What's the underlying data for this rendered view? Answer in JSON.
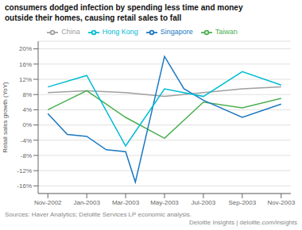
{
  "chart_data": {
    "type": "line",
    "title": "consumers dodged infection by spending less time and money",
    "subtitle": "outside their homes, causing retail sales to fall",
    "y_label": "Retail sales growth (YoY)",
    "annotations": [
      "Sources: Haver Analytics; Deloitte Services LP economic analysis.",
      "Deloitte Insights | deloitte.com/insights"
    ],
    "xlim": [
      -0.5,
      12.5
    ],
    "xticks": [
      {
        "value": 0,
        "label": "Nov-2002"
      },
      {
        "value": 2,
        "label": "Jan-2003"
      },
      {
        "value": 4,
        "label": "Mar-2003"
      },
      {
        "value": 6,
        "label": "May-2003"
      },
      {
        "value": 8,
        "label": "Jul-2003"
      },
      {
        "value": 10,
        "label": "Sep-2003"
      },
      {
        "value": 12,
        "label": "Nov-2003"
      }
    ],
    "ylim": [
      -18,
      22
    ],
    "yticks": [
      {
        "value": -16,
        "label": "-16%"
      },
      {
        "value": -12,
        "label": "-12%"
      },
      {
        "value": -8,
        "label": "-8%"
      },
      {
        "value": -4,
        "label": "-4%"
      },
      {
        "value": 0,
        "label": "0%"
      },
      {
        "value": 4,
        "label": "4%"
      },
      {
        "value": 8,
        "label": "8%"
      },
      {
        "value": 12,
        "label": "12%"
      },
      {
        "value": 16,
        "label": "16%"
      },
      {
        "value": 20,
        "label": "20%"
      }
    ],
    "grid": true,
    "legend": "top",
    "series": [
      {
        "name": "China",
        "color": "#a0a0a0",
        "x": [
          0,
          2,
          4,
          6,
          8,
          10,
          12
        ],
        "values": [
          8.5,
          9.0,
          8.5,
          7.5,
          8.5,
          9.5,
          10.0
        ]
      },
      {
        "name": "Taiwan",
        "color": "#4caf50",
        "x": [
          0,
          2,
          4,
          6,
          8,
          10,
          12
        ],
        "values": [
          4.0,
          9.0,
          2.0,
          -3.5,
          6.0,
          4.5,
          7.0
        ]
      },
      {
        "name": "Singapore",
        "color": "#1a78c2",
        "x": [
          0,
          1,
          2,
          3,
          4,
          4.5,
          6,
          7,
          8,
          10,
          12
        ],
        "values": [
          3.0,
          -2.5,
          -3.0,
          -6.5,
          -7.0,
          -15.0,
          18.0,
          9.5,
          6.5,
          2.0,
          5.5
        ]
      },
      {
        "name": "Hong Kong",
        "color": "#00bcd4",
        "x": [
          0,
          2,
          4,
          6,
          8,
          10,
          12
        ],
        "values": [
          10.0,
          13.0,
          -5.5,
          9.5,
          7.5,
          14.0,
          10.5
        ]
      }
    ]
  }
}
